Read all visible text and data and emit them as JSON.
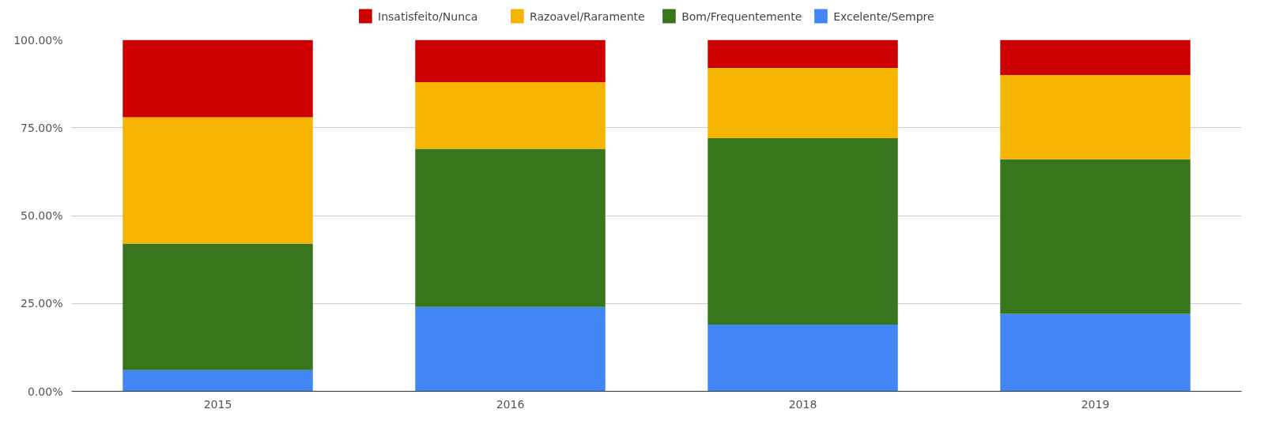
{
  "chart_data": {
    "type": "bar",
    "stacked": true,
    "categories": [
      "2015",
      "2016",
      "2018",
      "2019"
    ],
    "series": [
      {
        "name": "Excelente/Sempre",
        "color": "#4285f4",
        "values": [
          6,
          24,
          19,
          22
        ]
      },
      {
        "name": "Bom/Frequentemente",
        "color": "#38761d",
        "values": [
          36,
          45,
          53,
          44
        ]
      },
      {
        "name": "Razoavel/Raramente",
        "color": "#f4b400",
        "values": [
          36,
          19,
          20,
          24
        ]
      },
      {
        "name": "Insatisfeito/Nunca",
        "color": "#cc0000",
        "values": [
          22,
          12,
          8,
          10
        ]
      }
    ],
    "ylim": [
      0,
      100
    ],
    "yticks": [
      {
        "value": 0,
        "label": "0.00%"
      },
      {
        "value": 25,
        "label": "25.00%"
      },
      {
        "value": 50,
        "label": "50.00%"
      },
      {
        "value": 75,
        "label": "75.00%"
      },
      {
        "value": 100,
        "label": "100.00%"
      }
    ],
    "grid": "y",
    "legend": "top"
  }
}
